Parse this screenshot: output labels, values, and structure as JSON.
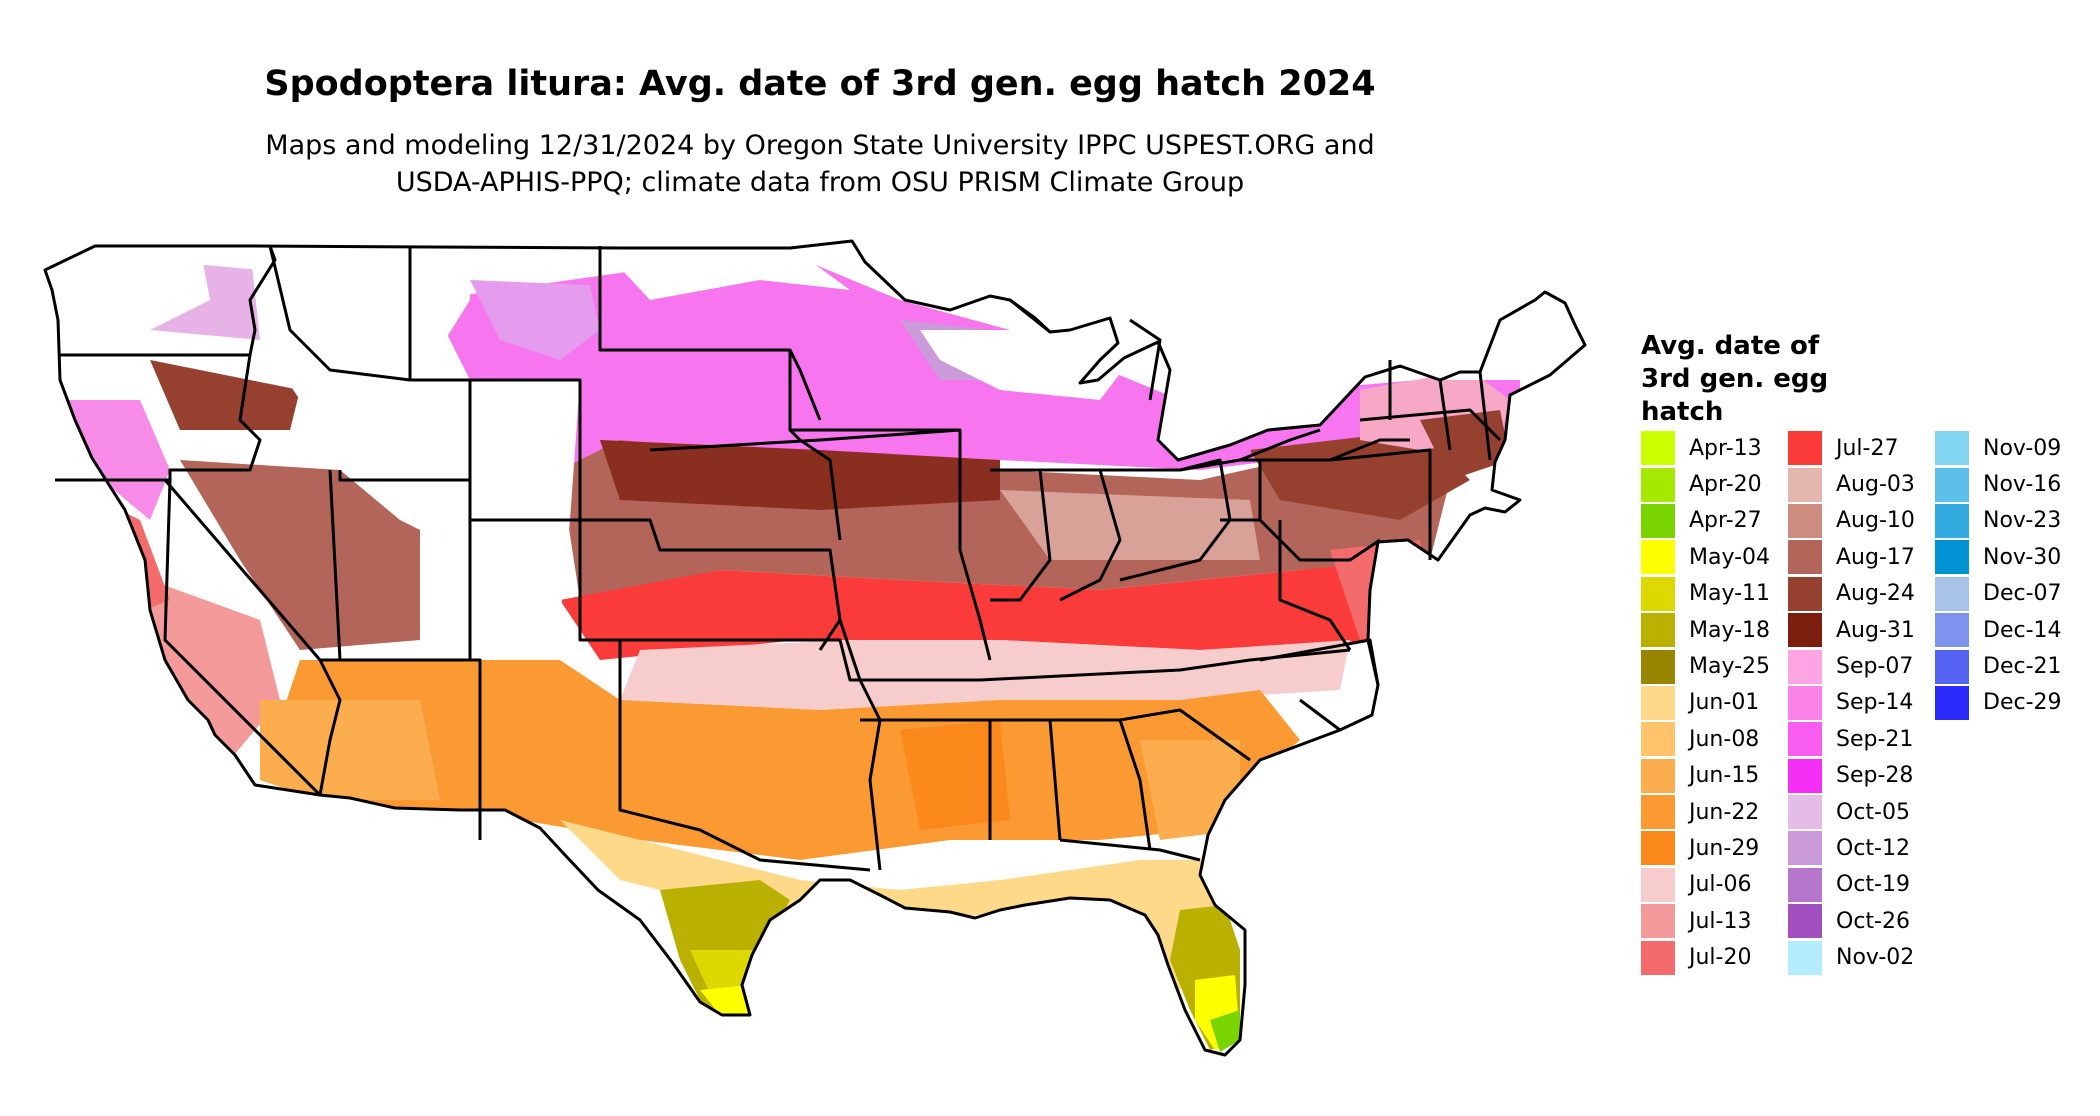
{
  "title": "Spodoptera litura: Avg. date of 3rd gen. egg hatch 2024",
  "subtitle_line1": "Maps and modeling 12/31/2024 by Oregon State University IPPC USPEST.ORG and",
  "subtitle_line2": "USDA-APHIS-PPQ; climate data from OSU PRISM Climate Group",
  "legend": {
    "title_lines": [
      "Avg. date of",
      "3rd gen. egg",
      "hatch"
    ],
    "columns": [
      [
        {
          "label": "Apr-13",
          "color": "#ccff00"
        },
        {
          "label": "Apr-20",
          "color": "#a5e800"
        },
        {
          "label": "Apr-27",
          "color": "#79d400"
        },
        {
          "label": "May-04",
          "color": "#ffff00"
        },
        {
          "label": "May-11",
          "color": "#dcd800"
        },
        {
          "label": "May-18",
          "color": "#bab000"
        },
        {
          "label": "May-25",
          "color": "#988600"
        },
        {
          "label": "Jun-01",
          "color": "#ffd98a"
        },
        {
          "label": "Jun-08",
          "color": "#ffc36a"
        },
        {
          "label": "Jun-15",
          "color": "#fcae4e"
        },
        {
          "label": "Jun-22",
          "color": "#fb9a33"
        },
        {
          "label": "Jun-29",
          "color": "#fb881a"
        },
        {
          "label": "Jul-06",
          "color": "#f7cccc"
        },
        {
          "label": "Jul-13",
          "color": "#f49a9a"
        },
        {
          "label": "Jul-20",
          "color": "#f46b6b"
        }
      ],
      [
        {
          "label": "Jul-27",
          "color": "#fb3a3a"
        },
        {
          "label": "Aug-03",
          "color": "#e4b7ad"
        },
        {
          "label": "Aug-10",
          "color": "#cc8c80"
        },
        {
          "label": "Aug-17",
          "color": "#b26558"
        },
        {
          "label": "Aug-24",
          "color": "#96402f"
        },
        {
          "label": "Aug-31",
          "color": "#7b1e0e"
        },
        {
          "label": "Sep-07",
          "color": "#fca5e2"
        },
        {
          "label": "Sep-14",
          "color": "#fb82e6"
        },
        {
          "label": "Sep-21",
          "color": "#fa5ef0"
        },
        {
          "label": "Sep-28",
          "color": "#f52ef5"
        },
        {
          "label": "Oct-05",
          "color": "#e3bde6"
        },
        {
          "label": "Oct-12",
          "color": "#cb9ad8"
        },
        {
          "label": "Oct-19",
          "color": "#b676cc"
        },
        {
          "label": "Oct-26",
          "color": "#a24fc1"
        },
        {
          "label": "Nov-02",
          "color": "#b3ecfc"
        }
      ],
      [
        {
          "label": "Nov-09",
          "color": "#84d5f2"
        },
        {
          "label": "Nov-16",
          "color": "#5cc0ea"
        },
        {
          "label": "Nov-23",
          "color": "#33aadf"
        },
        {
          "label": "Nov-30",
          "color": "#0093d4"
        },
        {
          "label": "Dec-07",
          "color": "#a7c3e8"
        },
        {
          "label": "Dec-14",
          "color": "#7d93ee"
        },
        {
          "label": "Dec-21",
          "color": "#5563f3"
        },
        {
          "label": "Dec-29",
          "color": "#2b2bfb"
        }
      ]
    ]
  }
}
